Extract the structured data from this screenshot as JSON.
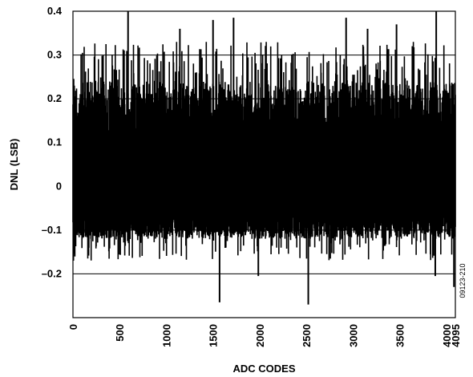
{
  "chart_data": {
    "type": "line",
    "title": "",
    "xlabel": "ADC CODES",
    "ylabel": "DNL (LSB)",
    "xlim": [
      0,
      4095
    ],
    "ylim": [
      -0.3,
      0.4
    ],
    "x_ticks": [
      0,
      500,
      1000,
      1500,
      2000,
      2500,
      3000,
      3500,
      4000,
      4095
    ],
    "y_ticks": [
      -0.2,
      -0.1,
      0,
      0.1,
      0.2,
      0.3,
      0.4
    ],
    "y_tick_labels": [
      "–0.2",
      "–0.1",
      "0",
      "0.1",
      "0.2",
      "0.3",
      "0.4"
    ],
    "grid": "horizontal",
    "legend": "none",
    "series": [
      {
        "color": "#000000",
        "band_upper": 0.24,
        "band_lower": -0.12,
        "peaks": [
          {
            "x": 590,
            "y": 0.4
          },
          {
            "x": 1145,
            "y": 0.36
          },
          {
            "x": 1500,
            "y": 0.38
          },
          {
            "x": 1720,
            "y": 0.385
          },
          {
            "x": 2925,
            "y": 0.385
          },
          {
            "x": 3890,
            "y": 0.4
          },
          {
            "x": 3155,
            "y": 0.36
          },
          {
            "x": 3465,
            "y": 0.37
          }
        ],
        "troughs": [
          {
            "x": 1570,
            "y": -0.265
          },
          {
            "x": 1985,
            "y": -0.205
          },
          {
            "x": 2520,
            "y": -0.27
          },
          {
            "x": 3880,
            "y": -0.205
          },
          {
            "x": 4080,
            "y": -0.23
          }
        ]
      }
    ]
  },
  "figure_id": "09123-210"
}
